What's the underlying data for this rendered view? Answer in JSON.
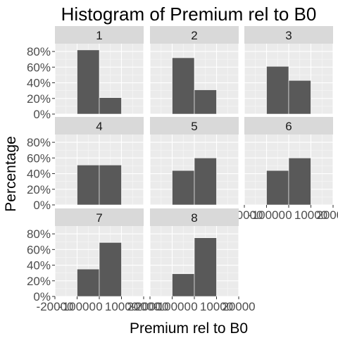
{
  "chart_data": {
    "type": "bar",
    "title": "Histogram of Premium rel to B0",
    "xlabel": "Premium rel to B0",
    "ylabel": "Percentage",
    "xlim": [
      -20000,
      20000
    ],
    "ylim": [
      0,
      0.9
    ],
    "x_ticks": [
      "-20000",
      "-10000",
      "0",
      "10000",
      "20000"
    ],
    "y_ticks": [
      "0%",
      "20%",
      "40%",
      "60%",
      "80%"
    ],
    "bin_edges": [
      -10000,
      0,
      10000
    ],
    "grid": true,
    "panel_background": "#ebebeb",
    "strip_background": "#d9d9d9",
    "bar_color": "#595959",
    "facets": [
      {
        "label": "1",
        "values": [
          0.82,
          0.21
        ]
      },
      {
        "label": "2",
        "values": [
          0.72,
          0.31
        ]
      },
      {
        "label": "3",
        "values": [
          0.61,
          0.43
        ]
      },
      {
        "label": "4",
        "values": [
          0.51,
          0.51
        ]
      },
      {
        "label": "5",
        "values": [
          0.44,
          0.6
        ]
      },
      {
        "label": "6",
        "values": [
          0.44,
          0.6
        ]
      },
      {
        "label": "7",
        "values": [
          0.35,
          0.69
        ]
      },
      {
        "label": "8",
        "values": [
          0.29,
          0.75
        ]
      }
    ]
  }
}
